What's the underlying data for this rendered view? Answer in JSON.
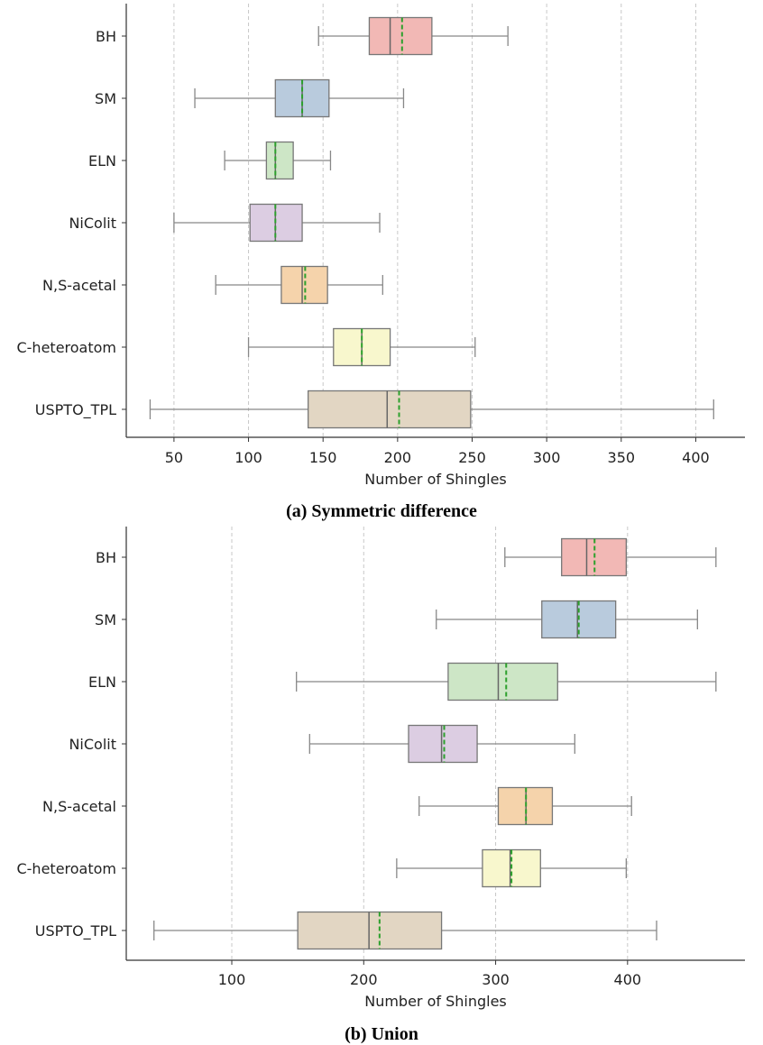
{
  "chart_data": [
    {
      "type": "boxplot",
      "caption": "(a) Symmetric difference",
      "xlabel": "Number of Shingles",
      "xlim": [
        18,
        433
      ],
      "xticks": [
        50,
        100,
        150,
        200,
        250,
        300,
        350,
        400
      ],
      "grid": "vertical dashed",
      "median_style": "solid gray",
      "mean_style": "dashed green",
      "boxes": [
        {
          "label": "BH",
          "color": "#f2b8b5",
          "whisker_low": 147,
          "q1": 181,
          "median": 195,
          "mean": 203,
          "q3": 223,
          "whisker_high": 274
        },
        {
          "label": "SM",
          "color": "#b9cbdd",
          "whisker_low": 64,
          "q1": 118,
          "median": 136,
          "mean": 136,
          "q3": 154,
          "whisker_high": 204
        },
        {
          "label": "ELN",
          "color": "#cde6c6",
          "whisker_low": 84,
          "q1": 112,
          "median": 118,
          "mean": 118,
          "q3": 130,
          "whisker_high": 155
        },
        {
          "label": "NiColit",
          "color": "#dccde2",
          "whisker_low": 50,
          "q1": 101,
          "median": 118,
          "mean": 118,
          "q3": 136,
          "whisker_high": 188
        },
        {
          "label": "N,S-acetal",
          "color": "#f5d3ab",
          "whisker_low": 78,
          "q1": 122,
          "median": 136,
          "mean": 138,
          "q3": 153,
          "whisker_high": 190
        },
        {
          "label": "C-heteroatom",
          "color": "#f8f7cd",
          "whisker_low": 100,
          "q1": 157,
          "median": 176,
          "mean": 176,
          "q3": 195,
          "whisker_high": 252
        },
        {
          "label": "USPTO_TPL",
          "color": "#e2d6c3",
          "whisker_low": 34,
          "q1": 140,
          "median": 193,
          "mean": 201,
          "q3": 249,
          "whisker_high": 412
        }
      ]
    },
    {
      "type": "boxplot",
      "caption": "(b) Union",
      "xlabel": "Number of Shingles",
      "xlim": [
        20,
        489
      ],
      "xticks": [
        100,
        200,
        300,
        400
      ],
      "grid": "vertical dashed",
      "median_style": "solid gray",
      "mean_style": "dashed green",
      "boxes": [
        {
          "label": "BH",
          "color": "#f2b8b5",
          "whisker_low": 307,
          "q1": 350,
          "median": 369,
          "mean": 375,
          "q3": 399,
          "whisker_high": 467
        },
        {
          "label": "SM",
          "color": "#b9cbdd",
          "whisker_low": 255,
          "q1": 335,
          "median": 362,
          "mean": 363,
          "q3": 391,
          "whisker_high": 453
        },
        {
          "label": "ELN",
          "color": "#cde6c6",
          "whisker_low": 149,
          "q1": 264,
          "median": 302,
          "mean": 308,
          "q3": 347,
          "whisker_high": 467
        },
        {
          "label": "NiColit",
          "color": "#dccde2",
          "whisker_low": 159,
          "q1": 234,
          "median": 259,
          "mean": 261,
          "q3": 286,
          "whisker_high": 360
        },
        {
          "label": "N,S-acetal",
          "color": "#f5d3ab",
          "whisker_low": 242,
          "q1": 302,
          "median": 323,
          "mean": 323,
          "q3": 343,
          "whisker_high": 403
        },
        {
          "label": "C-heteroatom",
          "color": "#f8f7cd",
          "whisker_low": 225,
          "q1": 290,
          "median": 311,
          "mean": 312,
          "q3": 334,
          "whisker_high": 399
        },
        {
          "label": "USPTO_TPL",
          "color": "#e2d6c3",
          "whisker_low": 41,
          "q1": 150,
          "median": 204,
          "mean": 212,
          "q3": 259,
          "whisker_high": 422
        }
      ]
    }
  ],
  "colors": {
    "axis": "#333333",
    "whisker": "#888888",
    "box_edge": "#777777",
    "median": "#666666",
    "mean": "#2ca02c",
    "grid": "#c8c8c8"
  }
}
